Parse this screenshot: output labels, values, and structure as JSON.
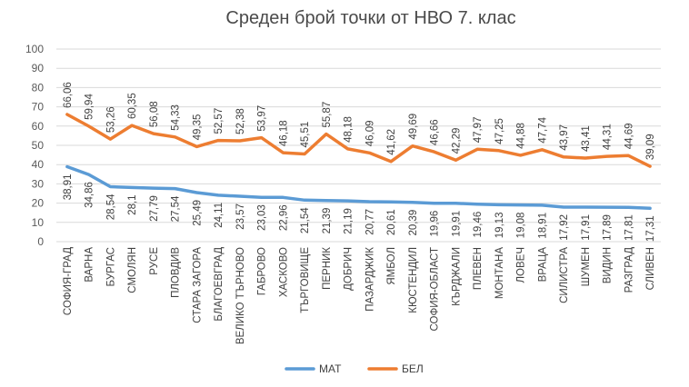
{
  "chart_data": {
    "type": "line",
    "title": "Среден брой точки от НВО 7. клас",
    "xlabel": "",
    "ylabel": "",
    "ylim": [
      0,
      100
    ],
    "yticks": [
      "0",
      "10",
      "20",
      "30",
      "40",
      "50",
      "60",
      "70",
      "80",
      "90",
      "100"
    ],
    "grid": true,
    "legend_position": "bottom",
    "categories": [
      "СОФИЯ-ГРАД",
      "ВАРНА",
      "БУРГАС",
      "СМОЛЯН",
      "РУСЕ",
      "ПЛОВДИВ",
      "СТАРА ЗАГОРА",
      "БЛАГОЕВГРАД",
      "ВЕЛИКО ТЪРНОВО",
      "ГАБРОВО",
      "ХАСКОВО",
      "ТЪРГОВИЩЕ",
      "ПЕРНИК",
      "ДОБРИЧ",
      "ПАЗАРДЖИК",
      "ЯМБОЛ",
      "КЮСТЕНДИЛ",
      "СОФИЯ-ОБЛАСТ",
      "КЪРДЖАЛИ",
      "ПЛЕВЕН",
      "МОНТАНА",
      "ЛОВЕЧ",
      "ВРАЦА",
      "СИЛИСТРА",
      "ШУМЕН",
      "ВИДИН",
      "РАЗГРАД",
      "СЛИВЕН"
    ],
    "series": [
      {
        "name": "МАТ",
        "color": "#5b9bd5",
        "values": [
          38.91,
          34.86,
          28.54,
          28.1,
          27.79,
          27.54,
          25.49,
          24.11,
          23.57,
          23.03,
          22.96,
          21.54,
          21.39,
          21.19,
          20.77,
          20.61,
          20.39,
          19.96,
          19.91,
          19.46,
          19.13,
          19.08,
          18.91,
          17.92,
          17.91,
          17.89,
          17.81,
          17.31
        ],
        "labels": [
          "38,91",
          "34,86",
          "28,54",
          "28,1",
          "27,79",
          "27,54",
          "25,49",
          "24,11",
          "23,57",
          "23,03",
          "22,96",
          "21,54",
          "21,39",
          "21,19",
          "20,77",
          "20,61",
          "20,39",
          "19,96",
          "19,91",
          "19,46",
          "19,13",
          "19,08",
          "18,91",
          "17,92",
          "17,91",
          "17,89",
          "17,81",
          "17,31"
        ]
      },
      {
        "name": "БЕЛ",
        "color": "#ed7d31",
        "values": [
          66.06,
          59.94,
          53.26,
          60.35,
          56.08,
          54.33,
          49.35,
          52.57,
          52.38,
          53.97,
          46.18,
          45.51,
          55.87,
          48.18,
          46.09,
          41.62,
          49.69,
          46.66,
          42.29,
          47.97,
          47.25,
          44.88,
          47.74,
          43.97,
          43.41,
          44.31,
          44.69,
          39.09
        ],
        "labels": [
          "66,06",
          "59,94",
          "53,26",
          "60,35",
          "56,08",
          "54,33",
          "49,35",
          "52,57",
          "52,38",
          "53,97",
          "46,18",
          "45,51",
          "55,87",
          "48,18",
          "46,09",
          "41,62",
          "49,69",
          "46,66",
          "42,29",
          "47,97",
          "47,25",
          "44,88",
          "47,74",
          "43,97",
          "43,41",
          "44,31",
          "44,69",
          "39,09"
        ]
      }
    ]
  }
}
